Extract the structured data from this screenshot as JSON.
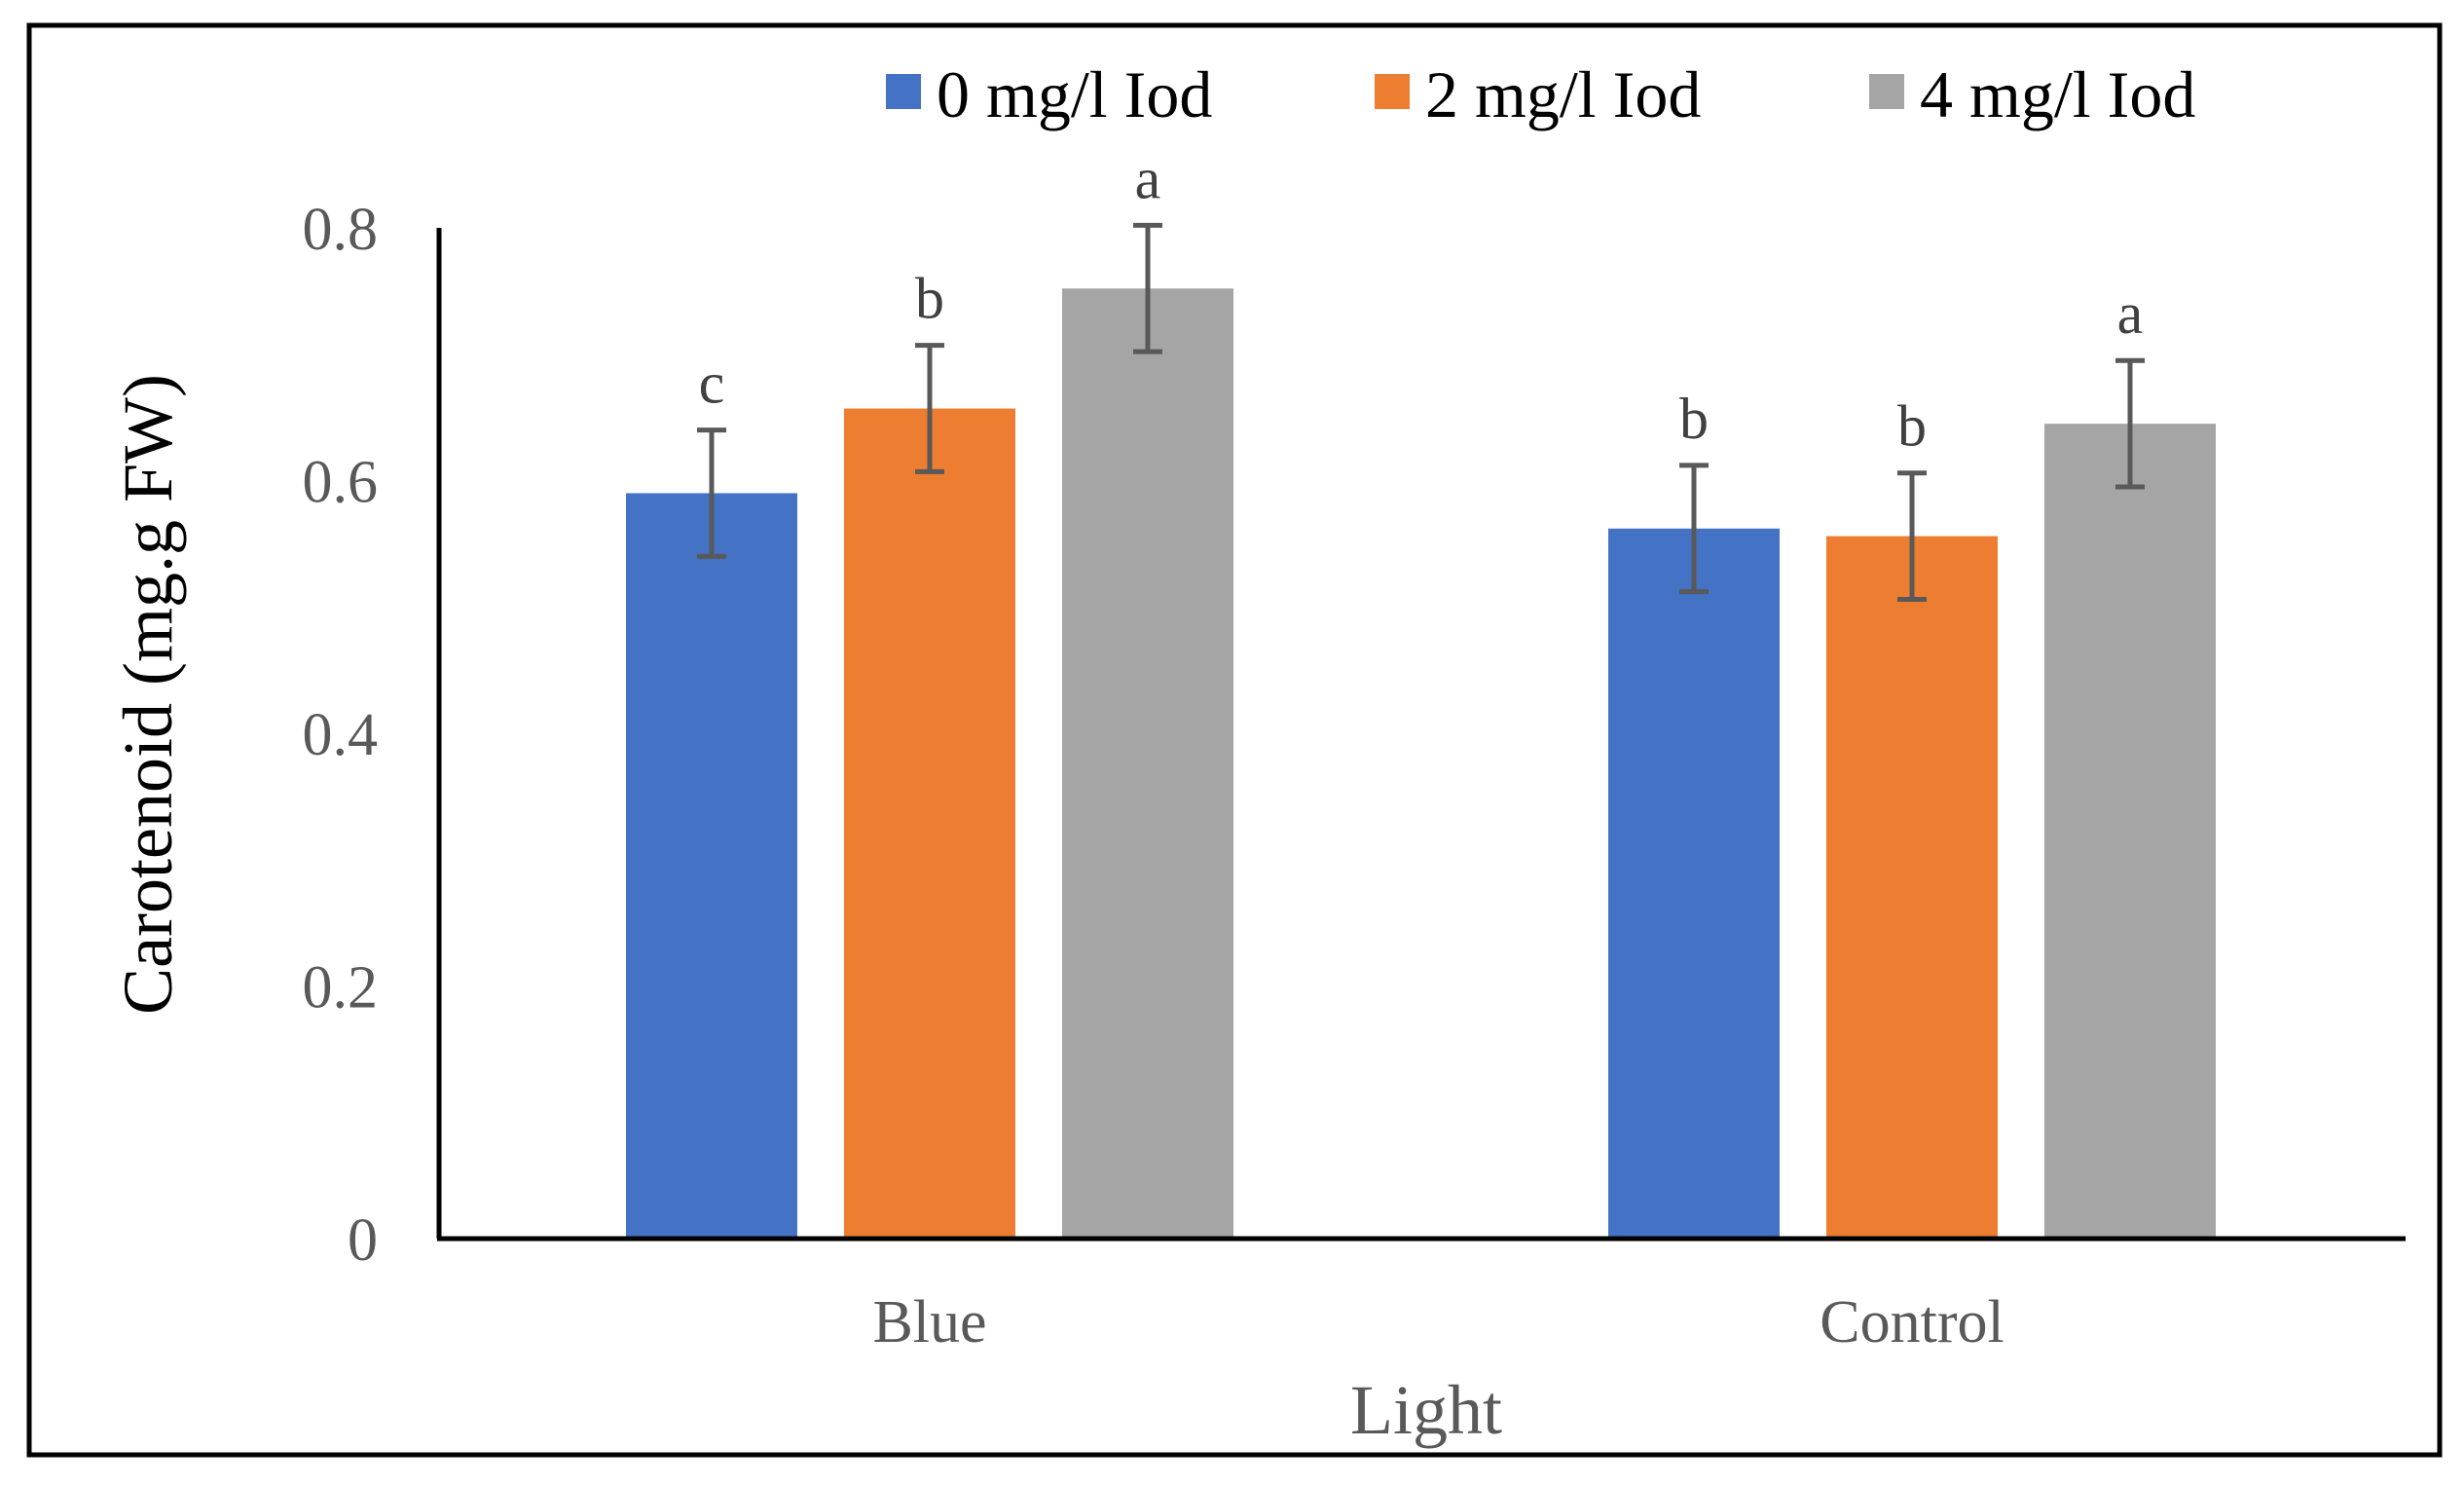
{
  "chart_data": {
    "type": "bar",
    "categories": [
      "Blue",
      "Control"
    ],
    "series": [
      {
        "name": "0 mg/l Iod",
        "color": "#4472C4",
        "values": [
          0.59,
          0.562
        ],
        "errors": [
          0.05,
          0.05
        ],
        "letters": [
          "c",
          "b"
        ]
      },
      {
        "name": "2 mg/l Iod",
        "color": "#ED7D31",
        "values": [
          0.657,
          0.556
        ],
        "errors": [
          0.05,
          0.05
        ],
        "letters": [
          "b",
          "b"
        ]
      },
      {
        "name": "4 mg/l Iod",
        "color": "#A5A5A5",
        "values": [
          0.752,
          0.645
        ],
        "errors": [
          0.05,
          0.05
        ],
        "letters": [
          "a",
          "a"
        ]
      }
    ],
    "title": "",
    "xlabel": "Light",
    "ylabel": "Carotenoid (mg.g FW)",
    "ylim": [
      0,
      0.8
    ],
    "yticks": [
      "0",
      "0.2",
      "0.4",
      "0.6",
      "0.8"
    ],
    "grid": false,
    "legend_position": "top"
  }
}
